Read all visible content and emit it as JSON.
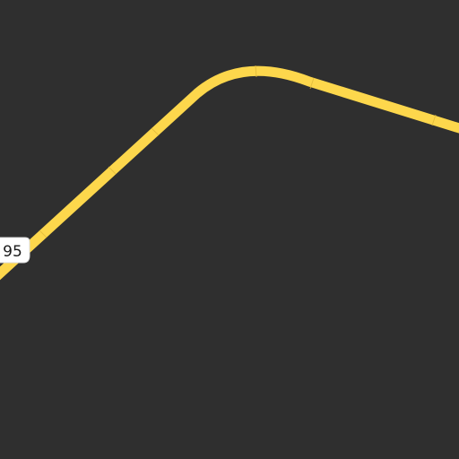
{
  "map": {
    "background_color": "#2f2f2f",
    "road": {
      "color": "#fdd74c",
      "segment_divider_color": "#e0b93a"
    },
    "route_shield": {
      "label": "95",
      "background_color": "#ffffff",
      "text_color": "#1a1a1a"
    }
  }
}
